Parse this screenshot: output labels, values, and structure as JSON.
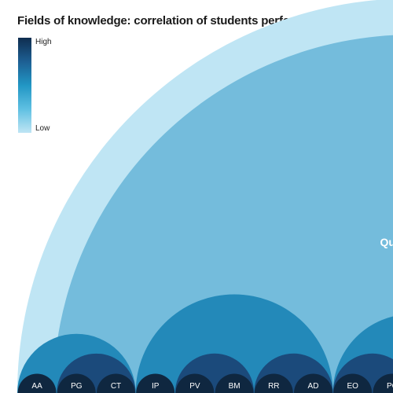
{
  "chart_data": {
    "type": "hierarchical-arc",
    "title": "Fields of knowledge: correlation of students performance",
    "legend": {
      "high_label": "High",
      "low_label": "Low",
      "colors": [
        "#0f2d4f",
        "#1d5f93",
        "#2196c4",
        "#5fc0e2",
        "#bfe5f4"
      ]
    },
    "colors": {
      "level0": "#bfe5f4",
      "level1": "#74bcdc",
      "level2": "#2389b9",
      "level3": "#1b4a7b",
      "level4": "#0f2740",
      "quantitative_label": "#ffffff",
      "leaf_label": "#ffffff"
    },
    "leaves": [
      "AA",
      "PG",
      "CT",
      "IP",
      "PV",
      "BM",
      "RR",
      "AD",
      "EO",
      "PC"
    ],
    "groups": [
      {
        "level": 0,
        "span": [
          0,
          19
        ]
      },
      {
        "level": 1,
        "span": [
          0,
          19
        ],
        "label": "Quantitative"
      },
      {
        "level": 2,
        "span": [
          0,
          2
        ]
      },
      {
        "level": 2,
        "span": [
          3,
          7
        ]
      },
      {
        "level": 2,
        "span": [
          8,
          11
        ]
      },
      {
        "level": 3,
        "span": [
          1,
          2
        ]
      },
      {
        "level": 3,
        "span": [
          4,
          5
        ]
      },
      {
        "level": 3,
        "span": [
          6,
          7
        ]
      },
      {
        "level": 3,
        "span": [
          8,
          9
        ]
      }
    ]
  }
}
